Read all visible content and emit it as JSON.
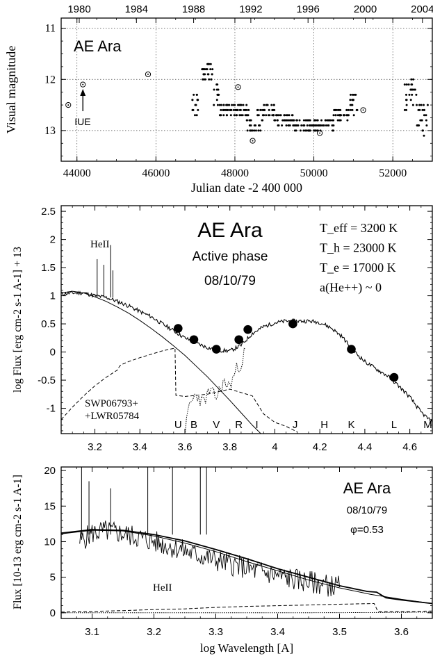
{
  "chart_data": [
    {
      "type": "scatter",
      "title": "AE Ara",
      "xlabel": "Julian date -2 400 000",
      "ylabel": "Visual magnitude",
      "xlim": [
        43600,
        53000
      ],
      "ylim": [
        13.6,
        10.8
      ],
      "y_inverted": true,
      "grid": true,
      "x_ticks": [
        "44000",
        "46000",
        "48000",
        "50000",
        "52000"
      ],
      "y_ticks": [
        "11",
        "12",
        "13"
      ],
      "top_axis_ticks": [
        "1980",
        "1984",
        "1988",
        "1992",
        "1996",
        "2000",
        "2004"
      ],
      "annotation": "IUE",
      "series": [
        {
          "marker": "open-circle",
          "points": [
            [
              43780,
              12.5
            ],
            [
              44150,
              12.1
            ],
            [
              45800,
              11.9
            ],
            [
              48080,
              12.15
            ],
            [
              48450,
              13.2
            ],
            [
              50150,
              13.05
            ],
            [
              51250,
              12.6
            ]
          ]
        },
        {
          "marker": "dot",
          "segments": [
            [
              46900,
              47100,
              12.5,
              0.2
            ],
            [
              47150,
              47300,
              11.9,
              0.1
            ],
            [
              47300,
              47450,
              11.8,
              0.2
            ],
            [
              47450,
              47600,
              12.3,
              0.3
            ],
            [
              47600,
              48000,
              12.6,
              0.1
            ],
            [
              48000,
              48300,
              12.6,
              0.1
            ],
            [
              48300,
              48700,
              12.8,
              0.2
            ],
            [
              48700,
              49000,
              12.6,
              0.1
            ],
            [
              49000,
              49500,
              12.8,
              0.1
            ],
            [
              49500,
              50000,
              12.9,
              0.1
            ],
            [
              50000,
              50500,
              12.9,
              0.1
            ],
            [
              50500,
              50900,
              12.7,
              0.1
            ],
            [
              50900,
              51100,
              12.5,
              0.3
            ],
            [
              52300,
              52600,
              12.3,
              0.3
            ],
            [
              52600,
              52900,
              12.8,
              0.3
            ]
          ]
        }
      ]
    },
    {
      "type": "line",
      "title": "AE Ara",
      "subtitle": "Active phase",
      "date": "08/10/79",
      "xlabel": "",
      "ylabel": "log Flux [erg cm-2 s-1 A-1] + 13",
      "xlim": [
        3.05,
        4.7
      ],
      "ylim": [
        -1.45,
        2.6
      ],
      "x_ticks": [
        "3.2",
        "3.4",
        "3.6",
        "3.8",
        "4",
        "4.2",
        "4.4",
        "4.6"
      ],
      "y_ticks": [
        "2.5",
        "2",
        "1.5",
        "1",
        "0.5",
        "0",
        "-0.5",
        "-1"
      ],
      "params": [
        "T_eff = 3200 K",
        "T_h = 23000 K",
        "T_e = 17000 K",
        "a(He++) ~ 0"
      ],
      "line_label": "HeII",
      "spectrum_label": [
        "SWP06793+",
        "+LWR05784"
      ],
      "bands": [
        "U",
        "B",
        "V",
        "R",
        "I",
        "J",
        "H",
        "K",
        "L",
        "M"
      ],
      "photometry": [
        [
          3.57,
          0.42
        ],
        [
          3.64,
          0.22
        ],
        [
          3.74,
          0.05
        ],
        [
          3.84,
          0.22
        ],
        [
          3.88,
          0.4
        ],
        [
          4.08,
          0.5
        ],
        [
          4.34,
          0.05
        ],
        [
          4.53,
          -0.45
        ]
      ],
      "series": [
        {
          "style": "observed",
          "points": [
            [
              3.05,
              1.03
            ],
            [
              3.1,
              1.05
            ],
            [
              3.15,
              1.05
            ],
            [
              3.2,
              1.0
            ],
            [
              3.25,
              0.97
            ],
            [
              3.3,
              0.9
            ],
            [
              3.35,
              0.82
            ],
            [
              3.4,
              0.72
            ],
            [
              3.45,
              0.63
            ],
            [
              3.5,
              0.5
            ],
            [
              3.55,
              0.38
            ],
            [
              3.6,
              0.25
            ],
            [
              3.65,
              0.16
            ],
            [
              3.7,
              0.08
            ],
            [
              3.75,
              0.03
            ],
            [
              3.8,
              0.02
            ],
            [
              3.85,
              0.12
            ],
            [
              3.9,
              0.33
            ],
            [
              3.95,
              0.45
            ],
            [
              4.0,
              0.52
            ],
            [
              4.05,
              0.55
            ],
            [
              4.1,
              0.55
            ],
            [
              4.15,
              0.55
            ],
            [
              4.2,
              0.53
            ],
            [
              4.25,
              0.43
            ],
            [
              4.3,
              0.27
            ],
            [
              4.35,
              0.02
            ],
            [
              4.4,
              -0.17
            ],
            [
              4.45,
              -0.3
            ],
            [
              4.5,
              -0.42
            ],
            [
              4.55,
              -0.6
            ],
            [
              4.6,
              -0.8
            ],
            [
              4.65,
              -1.07
            ],
            [
              4.7,
              -1.25
            ]
          ]
        },
        {
          "style": "hot-component",
          "points": [
            [
              3.05,
              1.05
            ],
            [
              3.1,
              1.08
            ],
            [
              3.15,
              1.05
            ],
            [
              3.2,
              0.98
            ],
            [
              3.25,
              0.9
            ],
            [
              3.3,
              0.8
            ],
            [
              3.35,
              0.69
            ],
            [
              3.4,
              0.56
            ],
            [
              3.45,
              0.42
            ],
            [
              3.5,
              0.27
            ],
            [
              3.55,
              0.11
            ],
            [
              3.6,
              -0.06
            ],
            [
              3.65,
              -0.25
            ],
            [
              3.7,
              -0.44
            ],
            [
              3.75,
              -0.65
            ],
            [
              3.8,
              -0.86
            ],
            [
              3.85,
              -1.08
            ],
            [
              3.9,
              -1.3
            ],
            [
              3.95,
              -1.5
            ],
            [
              4.0,
              -1.7
            ],
            [
              4.05,
              -1.9
            ]
          ]
        },
        {
          "style": "nebular",
          "points": [
            [
              3.05,
              -1.2
            ],
            [
              3.1,
              -0.98
            ],
            [
              3.15,
              -0.78
            ],
            [
              3.2,
              -0.6
            ],
            [
              3.25,
              -0.45
            ],
            [
              3.3,
              -0.32
            ],
            [
              3.31,
              -0.25
            ],
            [
              3.32,
              -0.22
            ],
            [
              3.35,
              -0.17
            ],
            [
              3.4,
              -0.1
            ],
            [
              3.45,
              -0.04
            ],
            [
              3.5,
              0.02
            ],
            [
              3.556,
              0.07
            ],
            [
              3.56,
              -0.77
            ],
            [
              3.6,
              -0.79
            ],
            [
              3.7,
              -0.75
            ],
            [
              3.8,
              -0.66
            ],
            [
              3.9,
              -0.78
            ],
            [
              3.95,
              -1.1
            ],
            [
              4.0,
              -1.25
            ],
            [
              4.05,
              -1.32
            ],
            [
              4.1,
              -1.42
            ]
          ]
        },
        {
          "style": "red-giant",
          "points": [
            [
              3.6,
              -1.45
            ],
            [
              3.62,
              -0.95
            ],
            [
              3.65,
              -0.75
            ],
            [
              3.68,
              -0.9
            ],
            [
              3.71,
              -0.7
            ],
            [
              3.74,
              -0.8
            ],
            [
              3.77,
              -0.55
            ],
            [
              3.8,
              -0.6
            ],
            [
              3.83,
              -0.3
            ],
            [
              3.85,
              -0.2
            ],
            [
              3.87,
              0.05
            ]
          ]
        }
      ]
    },
    {
      "type": "line",
      "title": "AE Ara",
      "date": "08/10/79",
      "phase": "φ=0.53",
      "xlabel": "log Wavelength [A]",
      "ylabel": "Flux [10-13 erg cm-2 s-1 A-1]",
      "xlim": [
        3.05,
        3.65
      ],
      "ylim": [
        -0.8,
        20.5
      ],
      "x_ticks": [
        "3.1",
        "3.2",
        "3.3",
        "3.4",
        "3.5",
        "3.6"
      ],
      "y_ticks": [
        "0",
        "5",
        "10",
        "15",
        "20"
      ],
      "line_label": "HeII",
      "emission_lines": [
        [
          3.083,
          20.5
        ],
        [
          3.095,
          18.5
        ],
        [
          3.13,
          17.5
        ],
        [
          3.19,
          20.5
        ],
        [
          3.23,
          20.5
        ],
        [
          3.275,
          20.5
        ],
        [
          3.285,
          20.5
        ]
      ],
      "series": [
        {
          "style": "observed",
          "points": [
            [
              3.08,
              10.0
            ],
            [
              3.1,
              11.2
            ],
            [
              3.12,
              11.5
            ],
            [
              3.14,
              11.3
            ],
            [
              3.16,
              10.9
            ],
            [
              3.18,
              10.5
            ],
            [
              3.2,
              10.0
            ],
            [
              3.22,
              9.5
            ],
            [
              3.24,
              9.0
            ],
            [
              3.26,
              8.4
            ],
            [
              3.28,
              7.9
            ],
            [
              3.3,
              7.4
            ],
            [
              3.32,
              6.9
            ],
            [
              3.34,
              6.5
            ],
            [
              3.36,
              6.0
            ],
            [
              3.38,
              5.6
            ],
            [
              3.4,
              5.2
            ],
            [
              3.42,
              4.8
            ],
            [
              3.44,
              4.5
            ],
            [
              3.46,
              4.2
            ],
            [
              3.48,
              3.9
            ],
            [
              3.5,
              3.6
            ]
          ]
        },
        {
          "style": "model-total",
          "points": [
            [
              3.05,
              11.2
            ],
            [
              3.1,
              11.7
            ],
            [
              3.15,
              11.6
            ],
            [
              3.2,
              11.0
            ],
            [
              3.25,
              10.1
            ],
            [
              3.3,
              8.9
            ],
            [
              3.35,
              7.6
            ],
            [
              3.4,
              6.2
            ],
            [
              3.45,
              5.0
            ],
            [
              3.5,
              3.8
            ],
            [
              3.545,
              3.0
            ],
            [
              3.56,
              2.9
            ],
            [
              3.575,
              2.1
            ],
            [
              3.6,
              1.8
            ],
            [
              3.65,
              1.3
            ]
          ]
        },
        {
          "style": "hot-component",
          "points": [
            [
              3.05,
              11.1
            ],
            [
              3.1,
              11.6
            ],
            [
              3.15,
              11.5
            ],
            [
              3.2,
              10.8
            ],
            [
              3.25,
              9.8
            ],
            [
              3.3,
              8.6
            ],
            [
              3.35,
              7.2
            ],
            [
              3.4,
              5.9
            ],
            [
              3.45,
              4.6
            ],
            [
              3.5,
              3.5
            ],
            [
              3.55,
              2.6
            ],
            [
              3.6,
              1.9
            ],
            [
              3.65,
              1.3
            ]
          ]
        },
        {
          "style": "nebular",
          "points": [
            [
              3.05,
              0.1
            ],
            [
              3.1,
              0.2
            ],
            [
              3.15,
              0.3
            ],
            [
              3.2,
              0.45
            ],
            [
              3.25,
              0.55
            ],
            [
              3.3,
              0.75
            ],
            [
              3.35,
              0.9
            ],
            [
              3.4,
              1.0
            ],
            [
              3.45,
              1.1
            ],
            [
              3.5,
              1.2
            ],
            [
              3.556,
              1.3
            ],
            [
              3.562,
              0.2
            ],
            [
              3.6,
              0.2
            ],
            [
              3.65,
              0.25
            ]
          ]
        },
        {
          "style": "giant",
          "points": [
            [
              3.05,
              0.0
            ],
            [
              3.2,
              0.0
            ],
            [
              3.4,
              0.0
            ],
            [
              3.5,
              0.02
            ],
            [
              3.6,
              0.05
            ],
            [
              3.65,
              0.1
            ]
          ]
        }
      ]
    }
  ]
}
